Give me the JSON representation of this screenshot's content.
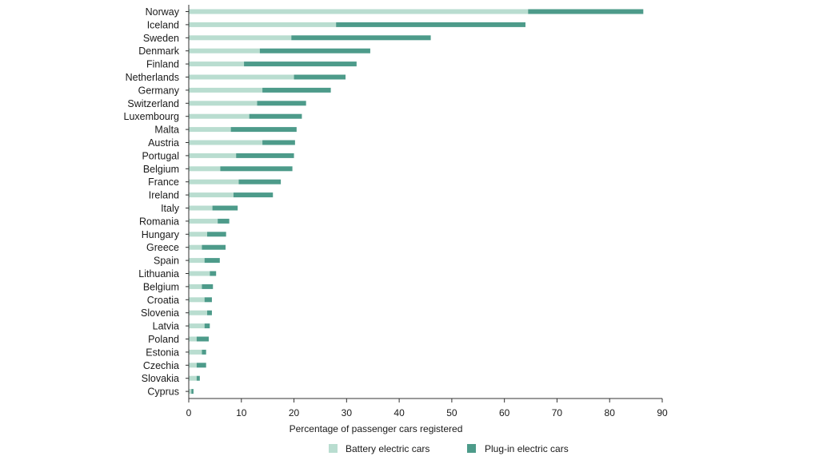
{
  "chart_data": {
    "type": "bar",
    "orientation": "horizontal",
    "stacked": true,
    "xlabel": "Percentage of passenger cars registered",
    "xlim": [
      0,
      90
    ],
    "xticks": [
      0,
      10,
      20,
      30,
      40,
      50,
      60,
      70,
      80,
      90
    ],
    "grid": false,
    "legend_position": "bottom",
    "categories": [
      "Norway",
      "Iceland",
      "Sweden",
      "Denmark",
      "Finland",
      "Netherlands",
      "Germany",
      "Switzerland",
      "Luxembourg",
      "Malta",
      "Austria",
      "Portugal",
      "Belgium",
      "France",
      "Ireland",
      "Italy",
      "Romania",
      "Hungary",
      "Greece",
      "Spain",
      "Lithuania",
      "Belgium",
      "Croatia",
      "Slovenia",
      "Latvia",
      "Poland",
      "Estonia",
      "Czechia",
      "Slovakia",
      "Cyprus"
    ],
    "series": [
      {
        "name": "Battery electric cars",
        "color": "#b9ddd0",
        "values": [
          64.5,
          28.0,
          19.5,
          13.5,
          10.5,
          20.0,
          14.0,
          13.0,
          11.5,
          8.0,
          14.0,
          9.0,
          6.0,
          9.5,
          8.5,
          4.5,
          5.5,
          3.5,
          2.5,
          3.0,
          4.0,
          2.5,
          3.0,
          3.5,
          3.0,
          1.5,
          2.5,
          1.5,
          1.5,
          0.5
        ],
        "label_key": "legend.battery"
      },
      {
        "name": "Plug-in electric cars",
        "color": "#4d9b8a",
        "values": [
          21.9,
          36.0,
          26.5,
          21.0,
          21.4,
          9.8,
          13.0,
          9.3,
          10.0,
          12.5,
          6.2,
          11.0,
          13.7,
          8.0,
          7.5,
          4.8,
          2.2,
          3.6,
          4.5,
          2.9,
          1.2,
          2.1,
          1.4,
          0.9,
          1.0,
          2.3,
          0.8,
          1.8,
          0.6,
          0.4
        ],
        "label_key": "legend.plugin"
      }
    ]
  },
  "legend": {
    "battery": "Battery electric cars",
    "plugin": "Plug-in electric cars"
  }
}
